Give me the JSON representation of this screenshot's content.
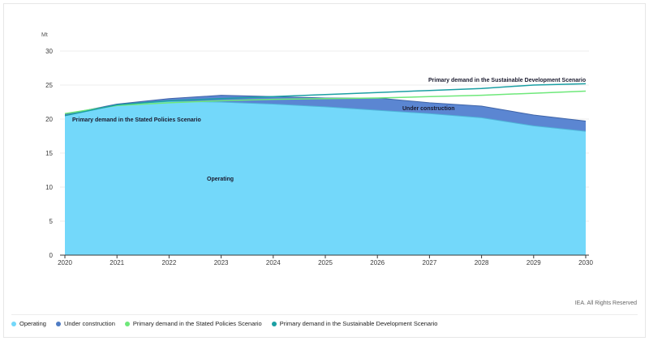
{
  "chart_data": {
    "type": "area",
    "unit_label": "Mt",
    "x": [
      2020,
      2021,
      2022,
      2023,
      2024,
      2025,
      2026,
      2027,
      2028,
      2029,
      2030
    ],
    "ylim": [
      0,
      30
    ],
    "yticks": [
      0,
      5,
      10,
      15,
      20,
      25,
      30
    ],
    "series": [
      {
        "name": "Operating",
        "kind": "area",
        "values": [
          20.5,
          22.1,
          22.6,
          22.5,
          22.2,
          21.8,
          21.3,
          20.8,
          20.2,
          19.0,
          18.2
        ]
      },
      {
        "name": "Under construction",
        "kind": "area",
        "values": [
          0.2,
          0.1,
          0.4,
          1.0,
          1.1,
          1.3,
          1.8,
          1.6,
          1.7,
          1.6,
          1.5
        ]
      },
      {
        "name": "Primary demand in the Stated Policies Scenario",
        "kind": "line",
        "values": [
          20.8,
          22.0,
          22.4,
          22.7,
          22.9,
          23.0,
          23.1,
          23.3,
          23.5,
          23.8,
          24.1
        ]
      },
      {
        "name": "Primary demand in the Sustainable Development Scenario",
        "kind": "line",
        "values": [
          20.5,
          22.1,
          22.7,
          23.0,
          23.3,
          23.6,
          23.9,
          24.2,
          24.5,
          25.0,
          25.2
        ]
      }
    ],
    "colors": {
      "operating": "#73d8fa",
      "operating_edge": "#4fb4d8",
      "under_construction": "#5b86d2",
      "under_construction_edge": "#3f64a8",
      "stated_policies": "#6ee87a",
      "sustainable_development": "#1b9fa3"
    },
    "annotations": {
      "operating": "Operating",
      "under_construction": "Under construction",
      "stated_policies": "Primary demand in the Stated Policies Scenario",
      "sustainable_development": "Primary demand in the Sustainable Development Scenario"
    }
  },
  "credit": "IEA. All Rights Reserved",
  "legend": [
    {
      "label": "Operating",
      "color": "#73d8fa"
    },
    {
      "label": "Under construction",
      "color": "#4f7cc4"
    },
    {
      "label": "Primary demand in the Stated Policies Scenario",
      "color": "#6ee87a"
    },
    {
      "label": "Primary demand in the Sustainable Development Scenario",
      "color": "#1b9fa3"
    }
  ]
}
